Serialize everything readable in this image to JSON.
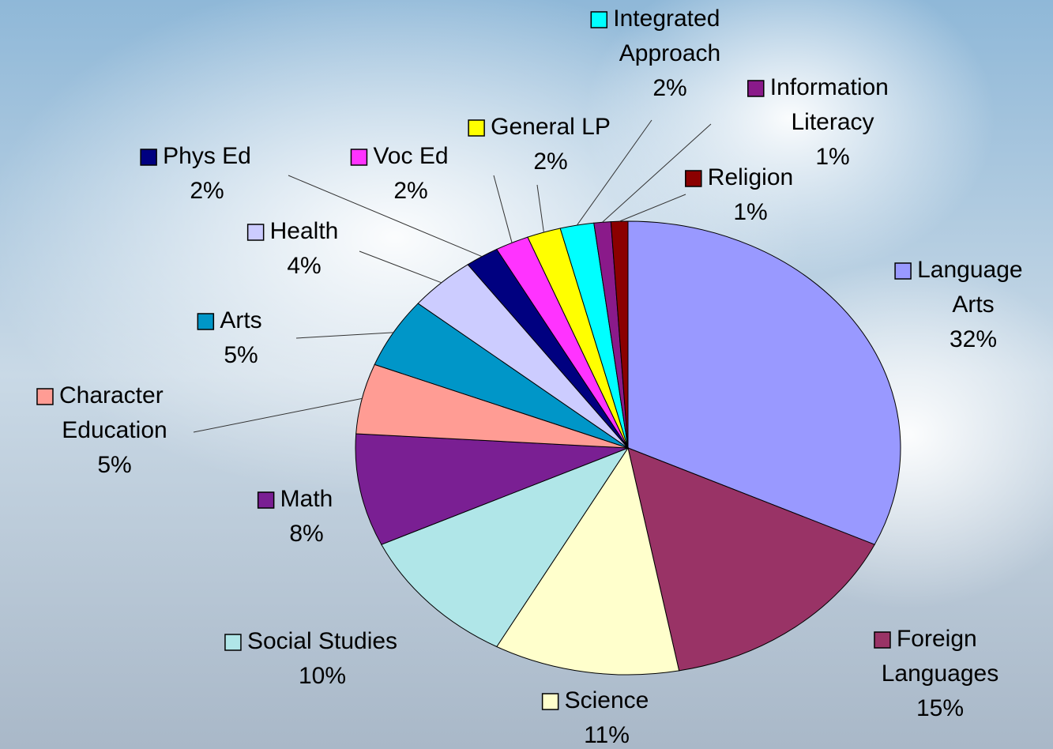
{
  "chart_data": {
    "type": "pie",
    "categories": [
      "Language Arts",
      "Foreign Languages",
      "Science",
      "Social Studies",
      "Math",
      "Character Education",
      "Arts",
      "Health",
      "Phys Ed",
      "Voc Ed",
      "General LP",
      "Integrated Approach",
      "Information Literacy",
      "Religion"
    ],
    "values": [
      32,
      15,
      11,
      10,
      8,
      5,
      5,
      4,
      2,
      2,
      2,
      2,
      1,
      1
    ],
    "value_labels": [
      "32%",
      "15%",
      "11%",
      "10%",
      "8%",
      "5%",
      "5%",
      "4%",
      "2%",
      "2%",
      "2%",
      "2%",
      "1%",
      "1%"
    ],
    "colors": [
      "#9999ff",
      "#993366",
      "#ffffcc",
      "#b0e6e8",
      "#7a1f93",
      "#ff9c94",
      "#0096c8",
      "#ccccff",
      "#000080",
      "#ff33ff",
      "#ffff00",
      "#00ffff",
      "#8a1a8a",
      "#8b0000"
    ]
  }
}
